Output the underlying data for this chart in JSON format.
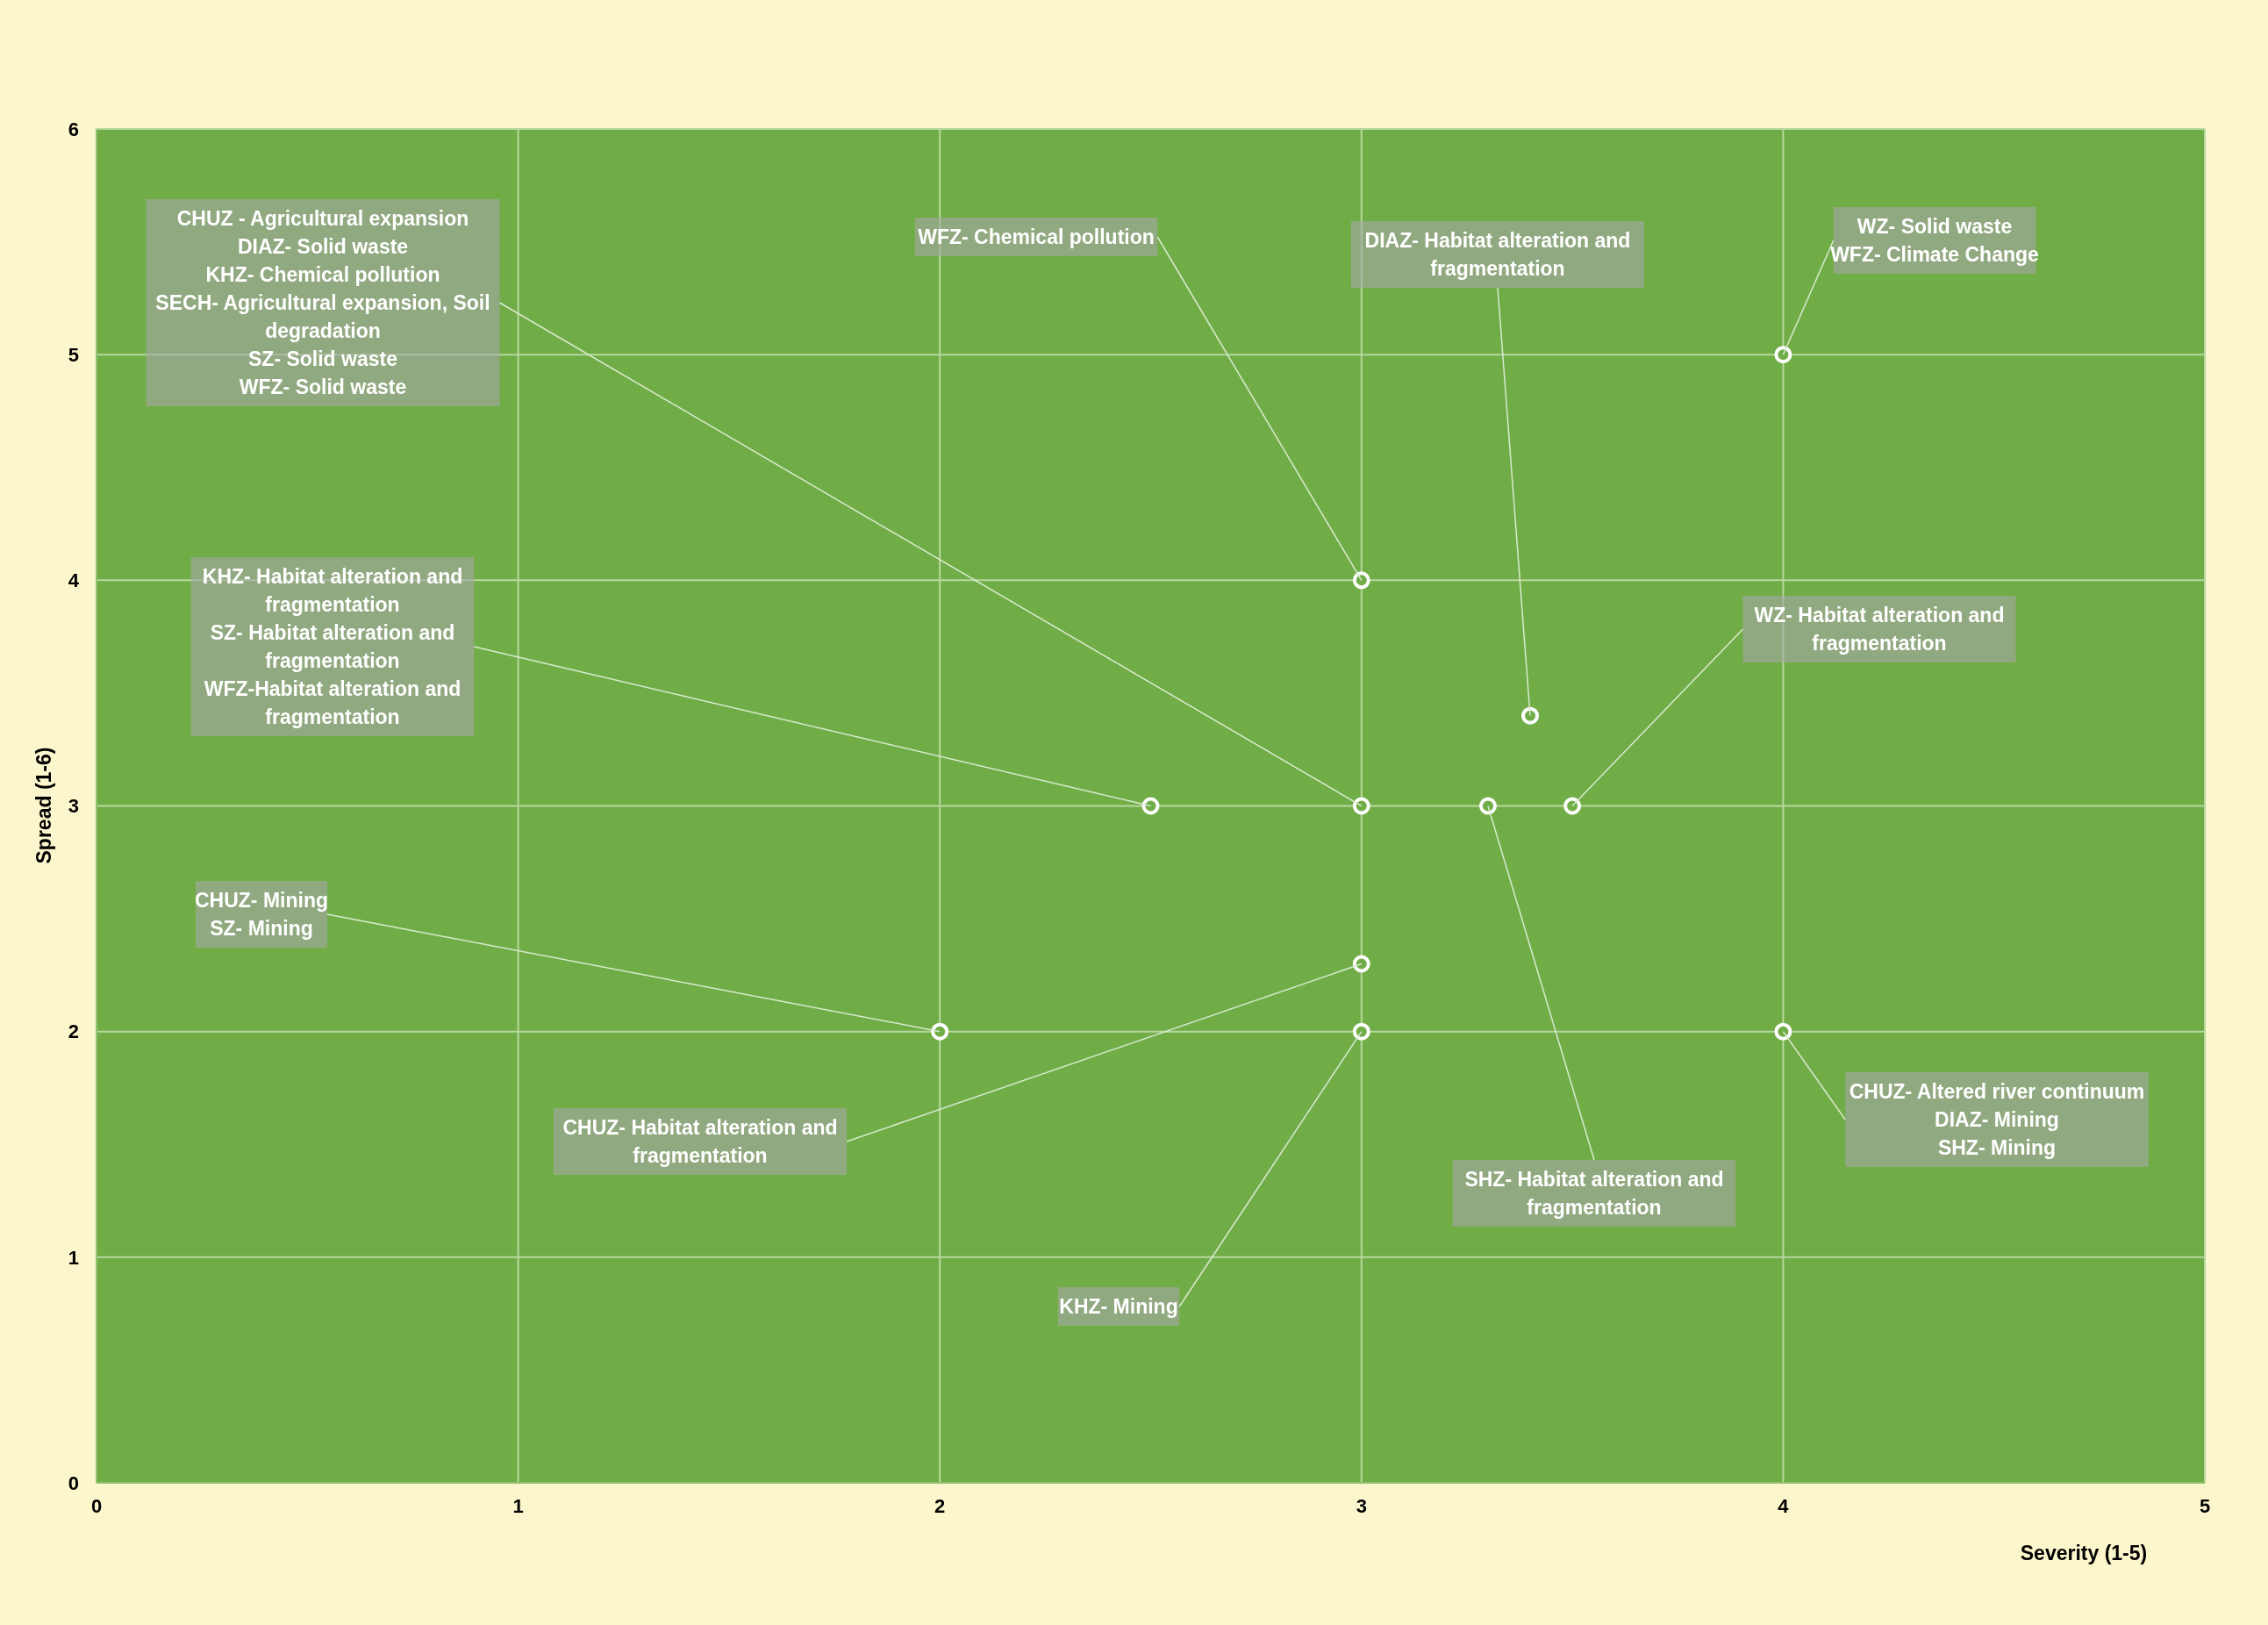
{
  "chart_data": {
    "type": "scatter",
    "xlabel": "Severity (1-5)",
    "ylabel": "Spread (1-6)",
    "x": [
      4,
      3,
      3.4,
      2.5,
      3,
      3.3,
      3.5,
      3,
      2,
      3,
      4
    ],
    "values": [
      5,
      4,
      3.4,
      3,
      3,
      3,
      3,
      2.3,
      2,
      2,
      2
    ],
    "color": "#ffffff",
    "marker": "circle",
    "grid": true,
    "legend": false,
    "xlim": [
      0,
      5
    ],
    "xticks": [
      0,
      1,
      2,
      3,
      4,
      5
    ],
    "ylim": [
      0,
      6
    ],
    "yticks": [
      0,
      1,
      2,
      3,
      4,
      5,
      6
    ],
    "annotations": [
      {
        "text": "WZ- Solid waste\nWFZ- Climate Change",
        "x": 4,
        "y": 5
      },
      {
        "text": "WFZ- Chemical pollution",
        "x": 3,
        "y": 4
      },
      {
        "text": "DIAZ- Habitat alteration and fragmentation",
        "x": 3.4,
        "y": 3.4
      },
      {
        "text": "KHZ- Habitat alteration and fragmentation\nSZ- Habitat alteration and fragmentation\nWFZ-Habitat alteration and fragmentation",
        "x": 2.5,
        "y": 3
      },
      {
        "text": "CHUZ - Agricultural expansion\nDIAZ- Solid waste\nKHZ- Chemical pollution\nSECH- Agricultural expansion, Soil degradation\nSZ- Solid waste\nWFZ- Solid waste",
        "x": 3,
        "y": 3
      },
      {
        "text": "SHZ- Habitat alteration and fragmentation",
        "x": 3.3,
        "y": 3
      },
      {
        "text": "WZ- Habitat alteration and fragmentation",
        "x": 3.5,
        "y": 3
      },
      {
        "text": "CHUZ- Habitat alteration and fragmentation",
        "x": 3,
        "y": 2.3
      },
      {
        "text": "CHUZ- Mining\nSZ- Mining",
        "x": 2,
        "y": 2
      },
      {
        "text": "KHZ- Mining",
        "x": 3,
        "y": 2
      },
      {
        "text": "CHUZ- Altered river continuum\nDIAZ- Mining\nSHZ- Mining",
        "x": 4,
        "y": 2
      }
    ]
  }
}
